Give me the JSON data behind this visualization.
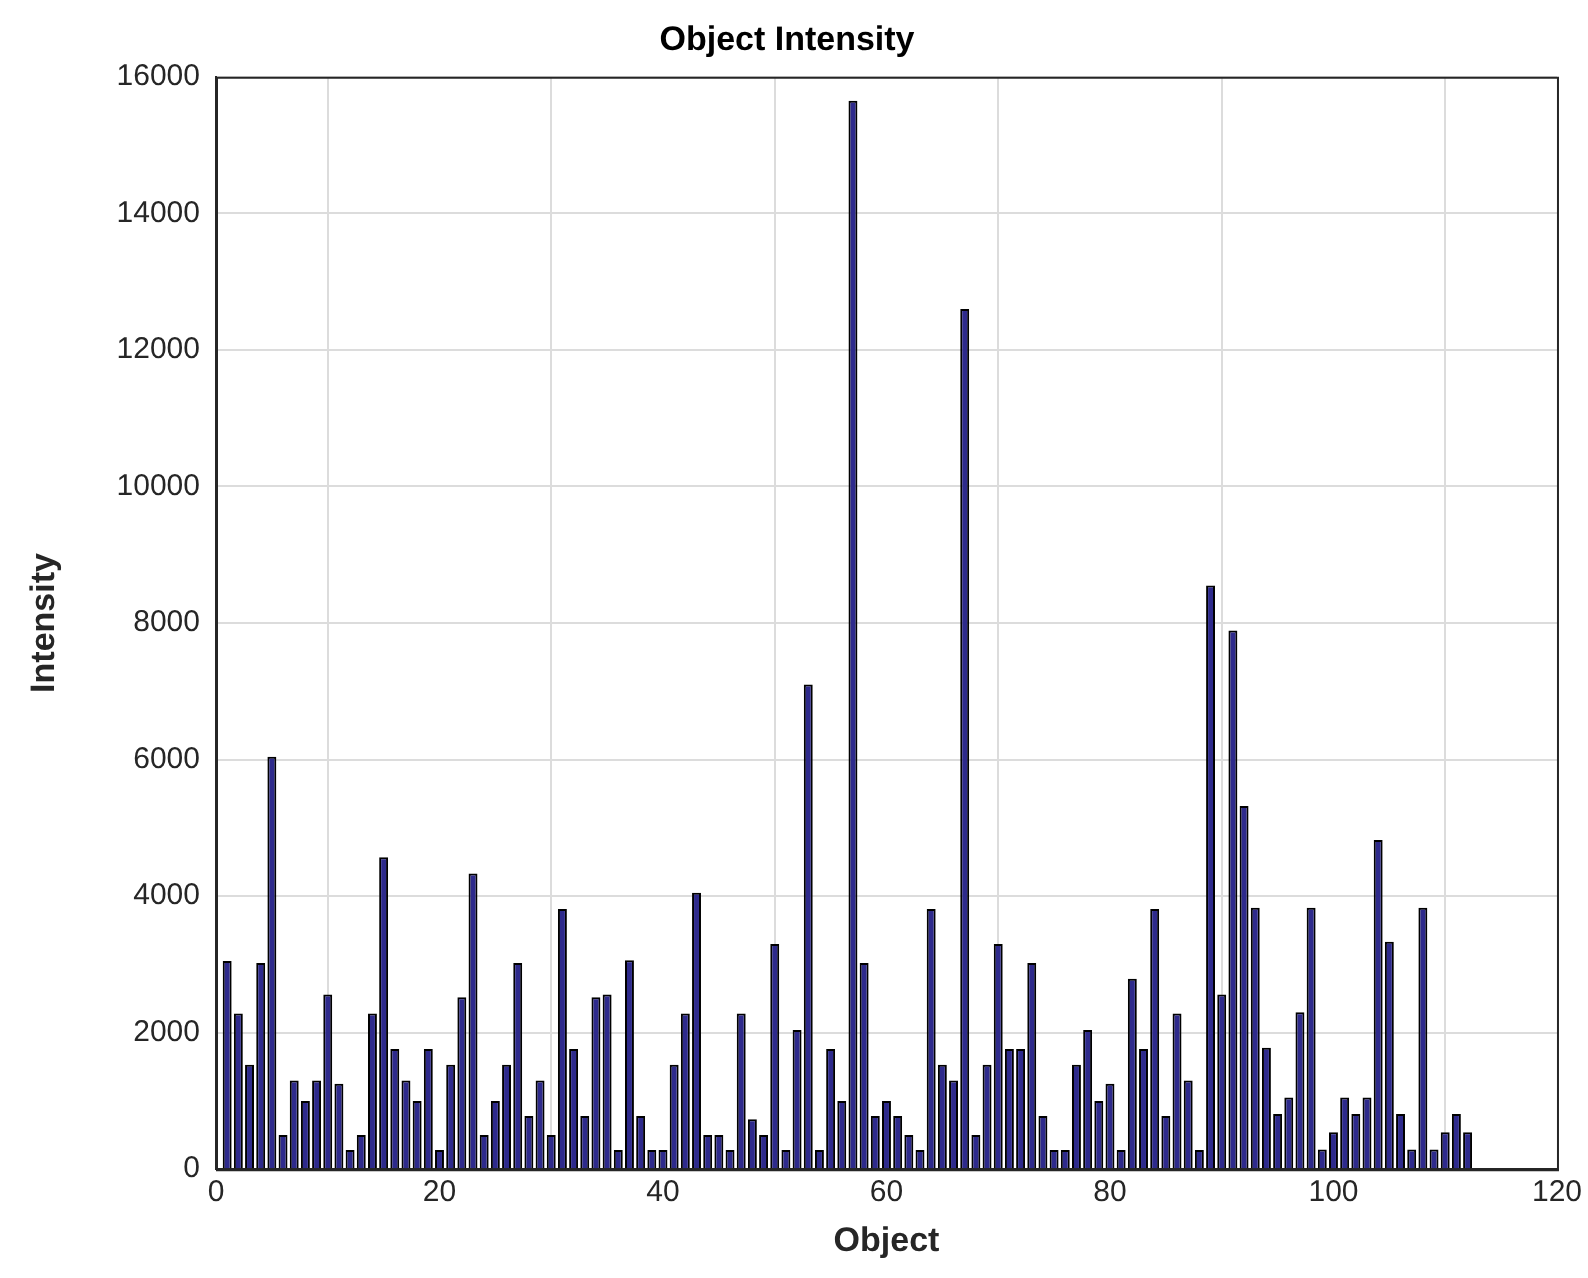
{
  "chart_data": {
    "type": "bar",
    "title": "Object Intensity",
    "xlabel": "Object",
    "ylabel": "Intensity",
    "x": [
      1,
      2,
      3,
      4,
      5,
      6,
      7,
      8,
      9,
      10,
      11,
      12,
      13,
      14,
      15,
      16,
      17,
      18,
      19,
      20,
      21,
      22,
      23,
      24,
      25,
      26,
      27,
      28,
      29,
      30,
      31,
      32,
      33,
      34,
      35,
      36,
      37,
      38,
      39,
      40,
      41,
      42,
      43,
      44,
      45,
      46,
      47,
      48,
      49,
      50,
      51,
      52,
      53,
      54,
      55,
      56,
      57,
      58,
      59,
      60,
      61,
      62,
      63,
      64,
      65,
      66,
      67,
      68,
      69,
      70,
      71,
      72,
      73,
      74,
      75,
      76,
      77,
      78,
      79,
      80,
      81,
      82,
      83,
      84,
      85,
      86,
      87,
      88,
      89,
      90,
      91,
      92,
      93,
      94,
      95,
      96,
      97,
      98,
      99,
      100,
      101,
      102,
      103,
      104,
      105,
      106,
      107,
      108,
      109,
      110,
      111,
      112
    ],
    "values": [
      3050,
      2280,
      1530,
      3020,
      6040,
      500,
      1300,
      1000,
      1300,
      2560,
      1250,
      280,
      500,
      2280,
      4570,
      1760,
      1300,
      1000,
      1760,
      280,
      1530,
      2520,
      4330,
      500,
      1000,
      1530,
      3020,
      780,
      1300,
      500,
      3810,
      1760,
      780,
      2520,
      2560,
      280,
      3060,
      780,
      280,
      280,
      1530,
      2280,
      4050,
      500,
      500,
      280,
      2280,
      730,
      500,
      3300,
      280,
      2040,
      7100,
      280,
      1760,
      1000,
      15650,
      3020,
      780,
      1000,
      780,
      500,
      280,
      3810,
      1530,
      1300,
      12600,
      500,
      1530,
      3300,
      1760,
      1760,
      3020,
      780,
      280,
      280,
      1530,
      2040,
      1000,
      1250,
      280,
      2790,
      1760,
      3810,
      780,
      2280,
      1300,
      280,
      8550,
      2560,
      7890,
      5320,
      3830,
      1780,
      810,
      1050,
      2300,
      3830,
      290,
      540,
      1050,
      810,
      1050,
      4820,
      3330,
      810,
      290,
      3830,
      290,
      540,
      810,
      540
    ],
    "color": "#2e2a8c",
    "xlim": [
      0,
      120
    ],
    "xticks": [
      0,
      20,
      40,
      60,
      80,
      100,
      120
    ],
    "ylim": [
      0,
      16000
    ],
    "yticks": [
      0,
      2000,
      4000,
      6000,
      8000,
      10000,
      12000,
      14000,
      16000
    ],
    "grid": true
  }
}
